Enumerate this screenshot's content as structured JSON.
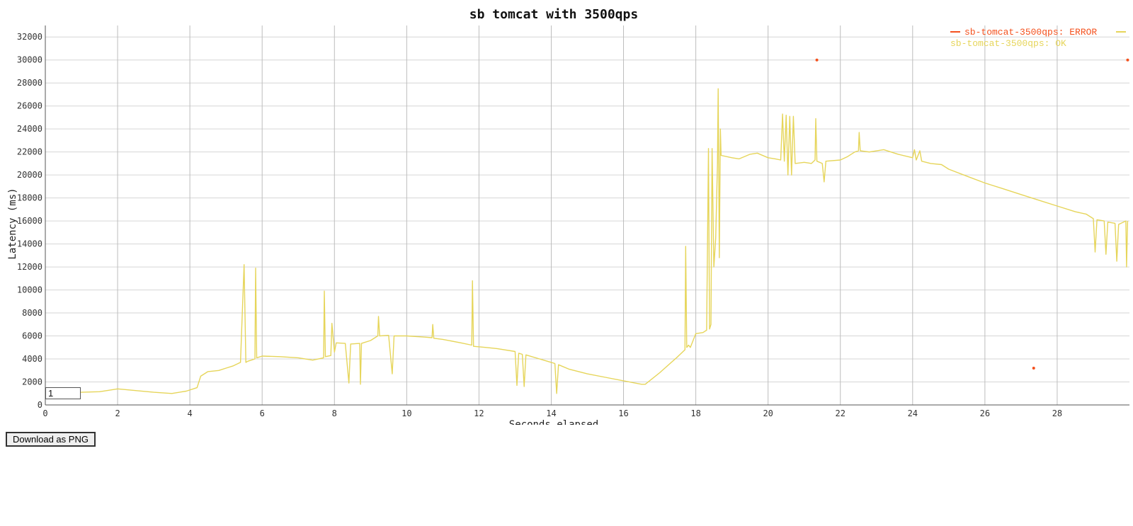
{
  "chart_data": {
    "type": "line",
    "title": "sb tomcat with 3500qps",
    "xlabel": "Seconds elapsed",
    "ylabel": "Latency (ms)",
    "xlim": [
      0,
      30
    ],
    "ylim": [
      0,
      33000
    ],
    "x_ticks": [
      0,
      2,
      4,
      6,
      8,
      10,
      12,
      14,
      16,
      18,
      20,
      22,
      24,
      26,
      28
    ],
    "y_ticks": [
      0,
      2000,
      4000,
      6000,
      8000,
      10000,
      12000,
      14000,
      16000,
      18000,
      20000,
      22000,
      24000,
      26000,
      28000,
      30000,
      32000
    ],
    "grid": true,
    "legend_position": "top-right",
    "series": [
      {
        "name": "sb-tomcat-3500qps: ERROR",
        "color": "#f4511e",
        "style": "points",
        "points": [
          [
            21.35,
            30000
          ],
          [
            27.35,
            3200
          ],
          [
            29.95,
            30000
          ]
        ]
      },
      {
        "name": "sb-tomcat-3500qps: OK",
        "color": "#e6d55a",
        "style": "line",
        "points": [
          [
            0.0,
            1000
          ],
          [
            0.5,
            1050
          ],
          [
            1.0,
            1100
          ],
          [
            1.5,
            1150
          ],
          [
            1.8,
            1300
          ],
          [
            2.0,
            1400
          ],
          [
            2.5,
            1250
          ],
          [
            3.0,
            1100
          ],
          [
            3.5,
            1000
          ],
          [
            3.9,
            1200
          ],
          [
            4.2,
            1500
          ],
          [
            4.3,
            2500
          ],
          [
            4.5,
            2900
          ],
          [
            4.8,
            3000
          ],
          [
            5.0,
            3200
          ],
          [
            5.2,
            3400
          ],
          [
            5.4,
            3700
          ],
          [
            5.5,
            12200
          ],
          [
            5.55,
            3700
          ],
          [
            5.6,
            3800
          ],
          [
            5.8,
            4000
          ],
          [
            5.82,
            11900
          ],
          [
            5.85,
            4100
          ],
          [
            6.0,
            4250
          ],
          [
            6.5,
            4200
          ],
          [
            7.0,
            4100
          ],
          [
            7.4,
            3900
          ],
          [
            7.7,
            4100
          ],
          [
            7.72,
            9900
          ],
          [
            7.75,
            4200
          ],
          [
            7.9,
            4300
          ],
          [
            7.93,
            7100
          ],
          [
            8.0,
            4600
          ],
          [
            8.05,
            5400
          ],
          [
            8.3,
            5350
          ],
          [
            8.4,
            1900
          ],
          [
            8.45,
            5300
          ],
          [
            8.7,
            5350
          ],
          [
            8.72,
            1800
          ],
          [
            8.75,
            5350
          ],
          [
            9.0,
            5600
          ],
          [
            9.2,
            6000
          ],
          [
            9.22,
            7700
          ],
          [
            9.25,
            6000
          ],
          [
            9.5,
            6050
          ],
          [
            9.6,
            2700
          ],
          [
            9.65,
            6000
          ],
          [
            10.0,
            6000
          ],
          [
            10.5,
            5900
          ],
          [
            10.7,
            5850
          ],
          [
            10.72,
            7000
          ],
          [
            10.75,
            5800
          ],
          [
            11.0,
            5700
          ],
          [
            11.5,
            5400
          ],
          [
            11.8,
            5200
          ],
          [
            11.82,
            10800
          ],
          [
            11.85,
            5100
          ],
          [
            12.2,
            5000
          ],
          [
            12.5,
            4900
          ],
          [
            13.0,
            4650
          ],
          [
            13.05,
            1700
          ],
          [
            13.1,
            4500
          ],
          [
            13.2,
            4400
          ],
          [
            13.25,
            1600
          ],
          [
            13.3,
            4350
          ],
          [
            14.0,
            3700
          ],
          [
            14.1,
            3600
          ],
          [
            14.15,
            1000
          ],
          [
            14.2,
            3500
          ],
          [
            14.5,
            3100
          ],
          [
            15.0,
            2700
          ],
          [
            15.5,
            2400
          ],
          [
            16.0,
            2100
          ],
          [
            16.5,
            1800
          ],
          [
            16.6,
            1800
          ],
          [
            17.0,
            2800
          ],
          [
            17.5,
            4200
          ],
          [
            17.7,
            4800
          ],
          [
            17.72,
            13800
          ],
          [
            17.75,
            5000
          ],
          [
            17.8,
            5200
          ],
          [
            17.85,
            5000
          ],
          [
            18.0,
            6200
          ],
          [
            18.2,
            6300
          ],
          [
            18.3,
            6500
          ],
          [
            18.35,
            22300
          ],
          [
            18.38,
            6600
          ],
          [
            18.42,
            7000
          ],
          [
            18.45,
            22300
          ],
          [
            18.5,
            12000
          ],
          [
            18.55,
            14500
          ],
          [
            18.6,
            21000
          ],
          [
            18.62,
            27500
          ],
          [
            18.65,
            12800
          ],
          [
            18.68,
            24000
          ],
          [
            18.7,
            21700
          ],
          [
            19.0,
            21500
          ],
          [
            19.2,
            21400
          ],
          [
            19.5,
            21800
          ],
          [
            19.7,
            21900
          ],
          [
            20.0,
            21500
          ],
          [
            20.2,
            21400
          ],
          [
            20.35,
            21300
          ],
          [
            20.4,
            25300
          ],
          [
            20.45,
            21200
          ],
          [
            20.5,
            25200
          ],
          [
            20.55,
            20000
          ],
          [
            20.6,
            25100
          ],
          [
            20.65,
            20000
          ],
          [
            20.7,
            25100
          ],
          [
            20.75,
            21000
          ],
          [
            21.0,
            21100
          ],
          [
            21.2,
            21000
          ],
          [
            21.3,
            21300
          ],
          [
            21.32,
            24900
          ],
          [
            21.35,
            21200
          ],
          [
            21.5,
            21000
          ],
          [
            21.55,
            19400
          ],
          [
            21.6,
            21200
          ],
          [
            22.0,
            21300
          ],
          [
            22.2,
            21600
          ],
          [
            22.4,
            22000
          ],
          [
            22.5,
            22100
          ],
          [
            22.52,
            23700
          ],
          [
            22.55,
            22100
          ],
          [
            22.8,
            22000
          ],
          [
            23.2,
            22200
          ],
          [
            23.6,
            21800
          ],
          [
            24.0,
            21500
          ],
          [
            24.05,
            22200
          ],
          [
            24.1,
            21300
          ],
          [
            24.2,
            22100
          ],
          [
            24.25,
            21200
          ],
          [
            24.5,
            21000
          ],
          [
            24.8,
            20900
          ],
          [
            25.0,
            20500
          ],
          [
            25.5,
            19900
          ],
          [
            26.0,
            19300
          ],
          [
            26.5,
            18800
          ],
          [
            27.0,
            18300
          ],
          [
            27.5,
            17800
          ],
          [
            28.0,
            17300
          ],
          [
            28.5,
            16800
          ],
          [
            28.8,
            16600
          ],
          [
            29.0,
            16200
          ],
          [
            29.05,
            13300
          ],
          [
            29.1,
            16100
          ],
          [
            29.3,
            16000
          ],
          [
            29.35,
            13100
          ],
          [
            29.4,
            15900
          ],
          [
            29.6,
            15800
          ],
          [
            29.65,
            12500
          ],
          [
            29.7,
            15700
          ],
          [
            29.9,
            16000
          ],
          [
            29.92,
            12000
          ],
          [
            29.95,
            16000
          ]
        ]
      }
    ]
  },
  "controls": {
    "range_value": "1",
    "download_label": "Download as PNG"
  }
}
